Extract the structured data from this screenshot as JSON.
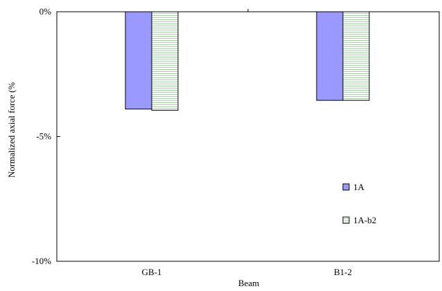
{
  "chart_data": {
    "type": "bar",
    "categories": [
      "GB-1",
      "B1-2"
    ],
    "series": [
      {
        "name": "1A",
        "values": [
          -3.9,
          -3.55
        ],
        "color": "#9999ff",
        "pattern": "solid"
      },
      {
        "name": "1A-b2",
        "values": [
          -3.95,
          -3.55
        ],
        "color": "#b8e0b8",
        "pattern": "horizontal-lines"
      }
    ],
    "xlabel": "Beam",
    "ylabel": "Normalized axial force (%",
    "ylim": [
      -10,
      0
    ],
    "yticks": [
      0,
      -5,
      -10
    ],
    "ytick_labels": [
      "0%",
      "-5%",
      "-10%"
    ],
    "x_axis_position": "top",
    "grid": false,
    "legend_position": "lower-right inside"
  }
}
